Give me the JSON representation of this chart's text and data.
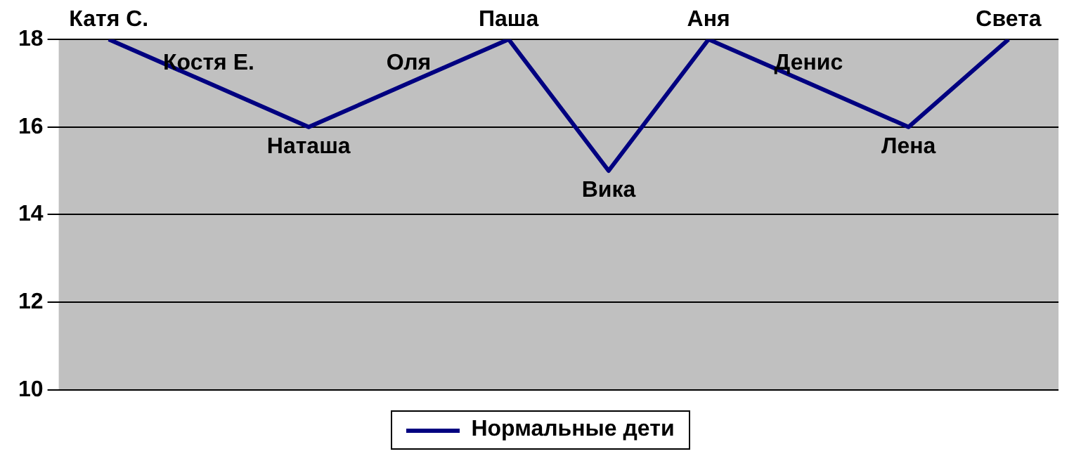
{
  "chart_data": {
    "type": "line",
    "categories": [
      "Катя С.",
      "Костя Е.",
      "Наташа",
      "Оля",
      "Паша",
      "Вика",
      "Аня",
      "Денис",
      "Лена",
      "Света"
    ],
    "series": [
      {
        "name": "Нормальные дети",
        "color": "#000080",
        "values": [
          18,
          17,
          16,
          17,
          18,
          15,
          18,
          17,
          16,
          18
        ]
      }
    ],
    "ylim": [
      10,
      18
    ],
    "yticks": [
      10,
      12,
      14,
      16,
      18
    ],
    "grid": "y",
    "legend": "bottom",
    "marker": "none",
    "tick_labels": "y"
  }
}
